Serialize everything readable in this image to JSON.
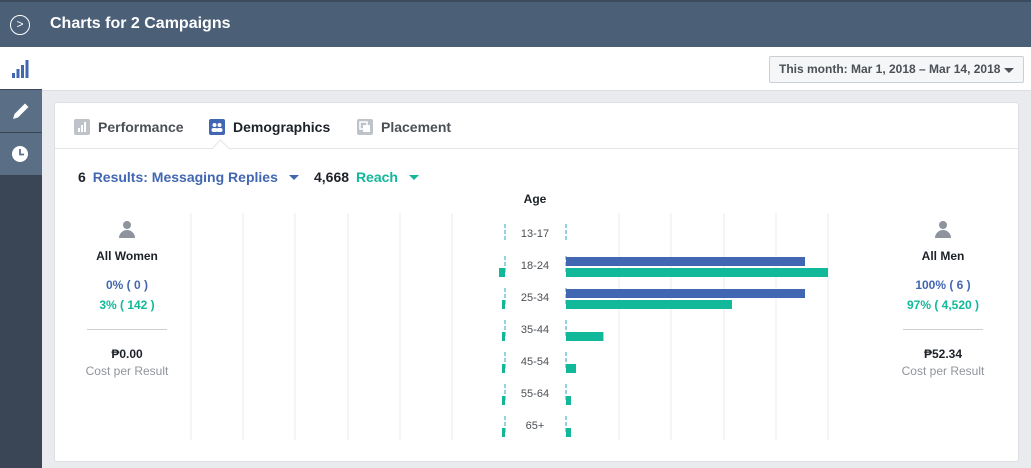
{
  "header": {
    "title": "Charts for 2 Campaigns"
  },
  "toolbar": {
    "date_range": "This month: Mar 1, 2018 – Mar 14, 2018"
  },
  "tabs": [
    {
      "label": "Performance",
      "icon": "bar-chart-icon",
      "selected": false
    },
    {
      "label": "Demographics",
      "icon": "people-icon",
      "selected": true
    },
    {
      "label": "Placement",
      "icon": "placement-icon",
      "selected": false
    }
  ],
  "metrics": {
    "results_count": "6",
    "results_label": "Results: Messaging Replies",
    "reach_count": "4,668",
    "reach_label": "Reach"
  },
  "women": {
    "label": "All Women",
    "results_pct": "0% ( 0 )",
    "reach_pct": "3% ( 142 )",
    "cost": "₱0.00",
    "cost_label": "Cost per Result"
  },
  "men": {
    "label": "All Men",
    "results_pct": "100% ( 6 )",
    "reach_pct": "97% ( 4,520 )",
    "cost": "₱52.34",
    "cost_label": "Cost per Result"
  },
  "colors": {
    "results": "#4267b2",
    "reach": "#12b89a",
    "header": "#4b5f77"
  },
  "chart_data": {
    "type": "bar",
    "title": "Age",
    "categories": [
      "13-17",
      "18-24",
      "25-34",
      "35-44",
      "45-54",
      "55-64",
      "65+"
    ],
    "series": [
      {
        "name": "Results: Messaging Replies",
        "gender": "women",
        "values": [
          0,
          0,
          0,
          0,
          0,
          0,
          0
        ]
      },
      {
        "name": "Reach",
        "gender": "women",
        "values": [
          0,
          40,
          10,
          5,
          2,
          2,
          2
        ]
      },
      {
        "name": "Results: Messaging Replies",
        "gender": "men",
        "values": [
          0,
          3,
          3,
          0,
          0,
          0,
          0
        ]
      },
      {
        "name": "Reach",
        "gender": "men",
        "values": [
          0,
          2100,
          1330,
          300,
          80,
          40,
          40
        ]
      }
    ],
    "grid": true
  }
}
